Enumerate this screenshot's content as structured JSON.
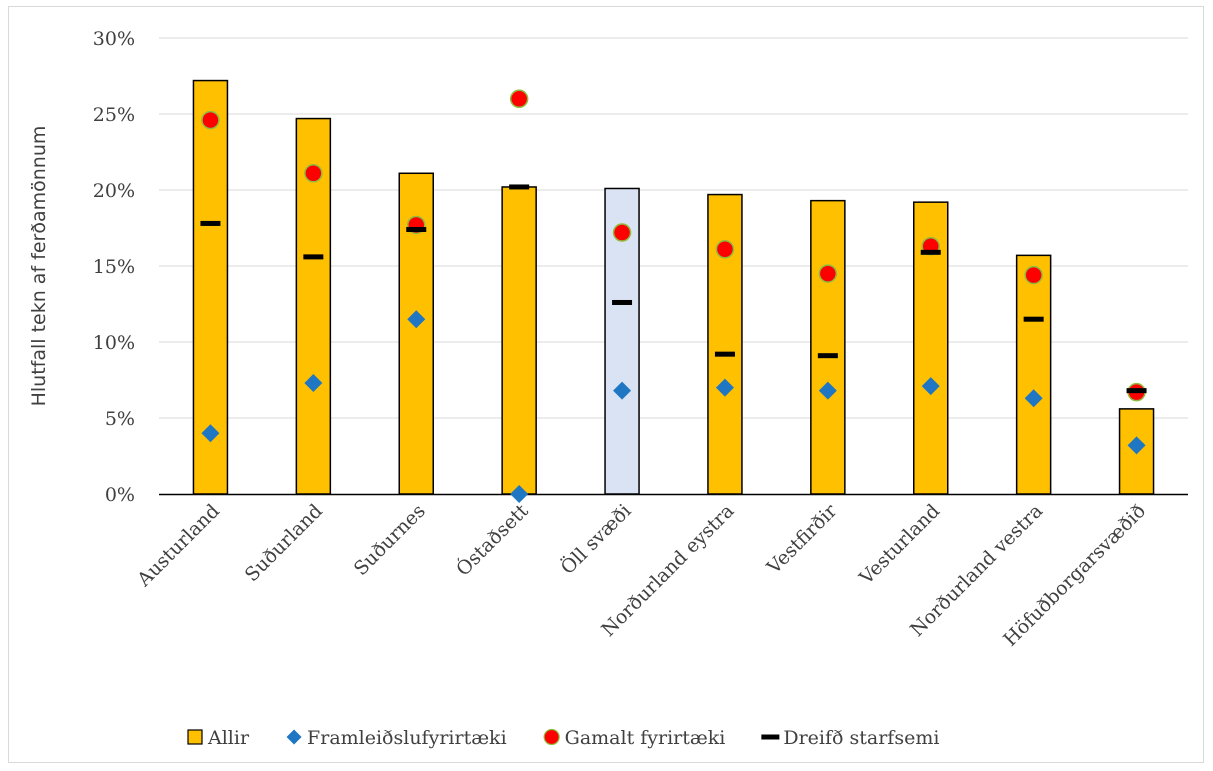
{
  "chart_data": {
    "type": "bar",
    "title": "",
    "xlabel": "",
    "ylabel": "Hlutfall tekn af ferðamönnum",
    "ylim": [
      0,
      30
    ],
    "yticks": [
      "0%",
      "5%",
      "10%",
      "15%",
      "20%",
      "25%",
      "30%"
    ],
    "grid": true,
    "legend_position": "bottom",
    "categories": [
      "Austurland",
      "Suðurland",
      "Suðurnes",
      "Óstaðsett",
      "Öll svæði",
      "Norðurland eystra",
      "Vestfirðir",
      "Vesturland",
      "Norðurland vestra",
      "Höfuðborgarsvæðið"
    ],
    "highlight_category": "Öll svæði",
    "series": [
      {
        "name": "Allir",
        "kind": "bar",
        "color": "#FFC000",
        "highlight_color": "#DAE3F3",
        "values": [
          27.2,
          24.7,
          21.1,
          20.2,
          20.1,
          19.7,
          19.3,
          19.2,
          15.7,
          5.6
        ]
      },
      {
        "name": "Framleiðslufyrirtæki",
        "kind": "diamond",
        "color": "#1F77C4",
        "values": [
          4.0,
          7.3,
          11.5,
          0.0,
          6.8,
          7.0,
          6.8,
          7.1,
          6.3,
          3.2
        ]
      },
      {
        "name": "Gamalt fyrirtæki",
        "kind": "circle",
        "color": "#FF0000",
        "values": [
          24.6,
          21.1,
          17.7,
          26.0,
          17.2,
          16.1,
          14.5,
          16.3,
          14.4,
          6.7
        ]
      },
      {
        "name": "Dreifð starfsemi",
        "kind": "dash",
        "color": "#000000",
        "values": [
          17.8,
          15.6,
          17.4,
          20.2,
          12.6,
          9.2,
          9.1,
          15.9,
          11.5,
          6.8
        ]
      }
    ]
  }
}
